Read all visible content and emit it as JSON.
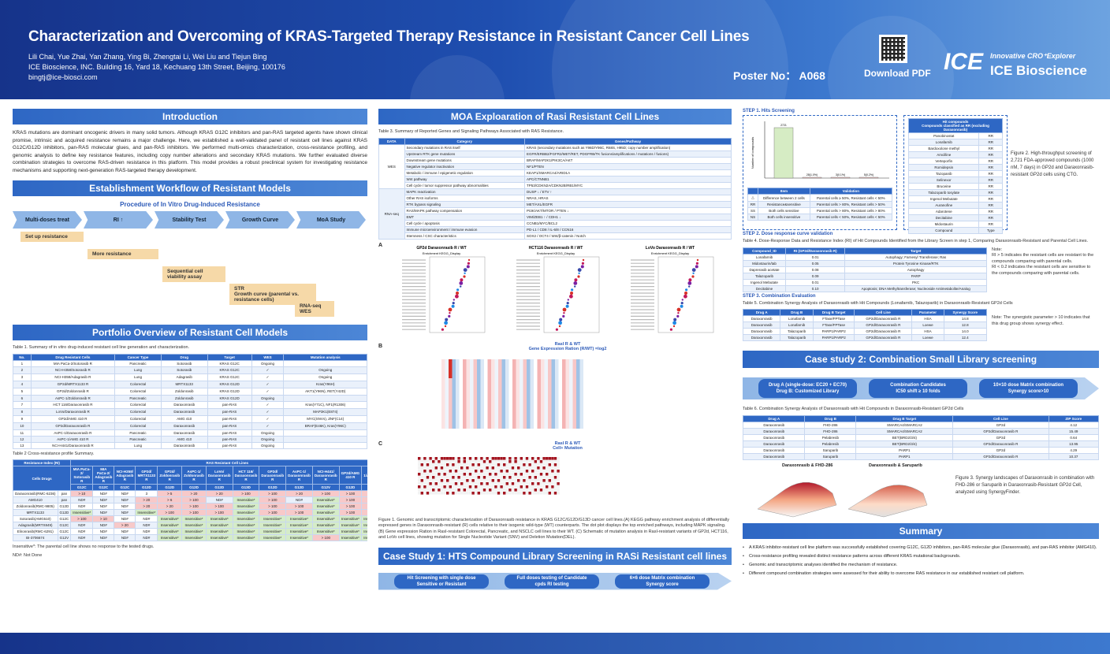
{
  "header": {
    "title": "Characterization and Overcoming of KRAS-Targeted Therapy Resistance in Resistant Cancer Cell Lines",
    "authors": "Lili Chai, Yue Zhai, Yan Zhang, Ying Bi, Zhengtai Li, Wei Liu and Tiejun Bing",
    "affiliation": "ICE Bioscience, INC. Building 16, Yard 18, Kechuang 13th Street, Beijing, 100176",
    "email": "bingtj@ice-biosci.com",
    "poster_no": "Poster No： A068",
    "download": "Download PDF",
    "logo_mark": "ICE",
    "logo_tag": "Innovative CRO⁺Explorer",
    "logo_name": "ICE Bioscience",
    "primary_color": "#1f4fb0"
  },
  "intro": {
    "title": "Introduction",
    "text": "KRAS mutations are dominant oncogenic drivers in many solid tumors. Although KRAS G12C inhibitors and pan-RAS targeted agents have shown clinical promise, intrinsic and acquired resistance remains a major challenge. Here, we established a well-validated panel of resistant cell lines against KRAS G12C/G12D inhibitors, pan-RAS molecular glues, and pan-RAS inhibitors. We performed multi-omics characterization, cross-resistance profiling, and genomic analysis to define key resistance features, including copy number alterations and secondary KRAS mutations. We further evaluated diverse combination strategies to overcome RAS-driven resistance in this platform. This model provides a robust preclinical system for investigating resistance mechanisms and supporting next-generation RAS-targeted therapy development."
  },
  "workflow": {
    "title": "Establishment Workflow of Resistant Models",
    "subtitle": "Procedure of In Vitro Drug-Induced Resistance",
    "arrows": [
      "Multi-doses treat",
      "RI ↑",
      "Stability Test",
      "Growth Curve",
      "MoA Study"
    ],
    "steps": [
      "Set up resistance",
      "More resistance",
      "Sequential cell viability assay",
      "STR\nGrowth curve (parental vs. resistance cells)",
      "RNA-seq\nWES"
    ]
  },
  "portfolio": {
    "title": "Portfolio Overview of Resistant Cell Models",
    "table1_caption": "Table 1. Summary of in vitro drug-induced resistant cell line generation and characterization.",
    "table1_headers": [
      "No.",
      "Drug Resistant Cells",
      "Cancer Type",
      "Drug",
      "Target",
      "WES",
      "Mutation analysis"
    ],
    "table1_rows": [
      [
        "1",
        "MIA PaCa-2/Sotorasib R",
        "Pancreatic",
        "Sotorasib",
        "KRAS G12C",
        "Ongoing",
        ""
      ],
      [
        "2",
        "NCI-H358/Sotorasib R",
        "Lung",
        "Sotorasib",
        "KRAS G12C",
        "✓",
        "Ongoing"
      ],
      [
        "3",
        "NCI-H358/Adagrasib R",
        "Lung",
        "Adagrasib",
        "KRAS G12C",
        "✓",
        "Ongoing"
      ],
      [
        "4",
        "GP2d/MRTX1133 R",
        "Colorectal",
        "MRTX1133",
        "KRAS G12D",
        "✓",
        "Kras(Y96H)"
      ],
      [
        "5",
        "GP2d/Zoldonrasib R",
        "Colorectal",
        "Zoldonrasib",
        "KRAS G12D",
        "✓",
        "AKT1(Y96N), RET(Y42D)"
      ],
      [
        "6",
        "AsPC-1/Zoldonrasib R",
        "Pancreatic",
        "Zoldonrasib",
        "KRAS G12D",
        "Ongoing",
        ""
      ],
      [
        "7",
        "HCT 116/Daraxonrasib R",
        "Colorectal",
        "Daraxonrasib",
        "pan-RAS",
        "✓",
        "Kras(Y71C), NF1(R1306)"
      ],
      [
        "8",
        "LoVo/Daraxonrasib R",
        "Colorectal",
        "Daraxonrasib",
        "pan-RAS",
        "✓",
        "MAP3K1(E874)"
      ],
      [
        "9",
        "GP2d/AMG 410 R",
        "Colorectal",
        "AMG 410",
        "pan-RAS",
        "✓",
        "MYC(SNVs), ZNF(C14)"
      ],
      [
        "10",
        "GP2d/Daraxonrasib R",
        "Colorectal",
        "Daraxonrasib",
        "pan-RAS",
        "✓",
        "BRAF(E46K), Kras(Y96C)"
      ],
      [
        "11",
        "AsPC-1/Daraxonrasib R",
        "Pancreatic",
        "Daraxonrasib",
        "pan-RAS",
        "Ongoing",
        ""
      ],
      [
        "12",
        "AsPC-1/AMG 410 R",
        "Pancreatic",
        "AMG 410",
        "pan-RAS",
        "Ongoing",
        ""
      ],
      [
        "13",
        "NCI-H441/Daraxonrasib R",
        "Lung",
        "Daraxonrasib",
        "pan-RAS",
        "Ongoing",
        ""
      ]
    ],
    "table2_caption": "Table 2 Cross-resistance profile Summary.",
    "table2_corner": "Resistance Index (RI)",
    "table2_group": "RAS Resistant Cell Lines",
    "table2_cells_drugs": "Cells Drugs",
    "table2_cols": [
      "MIA PaCa-2/ Sotorasib R",
      "MIA PaCa-2/ Adagrasib R",
      "NCI-H358/ Adagrasib R",
      "GP2d/ MRTX1133 R",
      "GP2d/ Zoldonrasib R",
      "AsPC-1/ Zoldonrasib R",
      "LoVo/ Daraxonrasib R",
      "HCT 116/ Daraxonrasib R",
      "GP2d/ Daraxonrasib R",
      "AsPC-1/ Daraxonrasib R",
      "NCI-H441/ Daraxonrasib R",
      "GP2d/AMG 410 R",
      "AsPC-1/AMG 410 R"
    ],
    "table2_mut": [
      "G12C",
      "G12C",
      "G12C",
      "G12D",
      "G12D",
      "G12D",
      "G12D",
      "G13D",
      "G12D",
      "G12D",
      "G12V",
      "G12D",
      "G12D"
    ],
    "table2_rows": [
      {
        "drug": "Daraxonrasib(RMC-6236)",
        "target": "pan",
        "vals": [
          "> 10",
          "ND#",
          "ND#",
          "3",
          "> 5",
          "> 20",
          "> 20",
          "> 100",
          "> 100",
          "> 20",
          "> 100",
          "> 100",
          "> 5"
        ]
      },
      {
        "drug": "AMG410",
        "target": "pan",
        "vals": [
          "ND#",
          "ND#",
          "ND#",
          "> 20",
          "> 6",
          "> 100",
          "ND#",
          "Insensitive*",
          "> 100",
          "ND#",
          "Insensitive*",
          "> 100",
          "> 100"
        ]
      },
      {
        "drug": "Zoldonrasib(RMC-9805)",
        "target": "G12D",
        "vals": [
          "ND#",
          "ND#",
          "ND#",
          "> 20",
          "> 20",
          "> 100",
          "> 100",
          "Insensitive*",
          "> 100",
          "> 100",
          "Insensitive*",
          "> 100",
          "> 100"
        ]
      },
      {
        "drug": "MRTX1133",
        "target": "G12D",
        "vals": [
          "Insensitive*",
          "ND#",
          "ND#",
          "Insensitive*",
          "> 100",
          "> 100",
          "> 100",
          "Insensitive*",
          "> 100",
          "> 100",
          "Insensitive*",
          "> 100",
          "> 100"
        ]
      },
      {
        "drug": "Sotorasib(AMG510)",
        "target": "G12C",
        "vals": [
          "> 100",
          "> 10",
          "ND#",
          "ND#",
          "Insensitive*",
          "Insensitive*",
          "Insensitive*",
          "Insensitive*",
          "Insensitive*",
          "Insensitive*",
          "Insensitive*",
          "Insensitive*",
          "Insensitive*"
        ]
      },
      {
        "drug": "Adagrasib(MRTX849)",
        "target": "G12C",
        "vals": [
          "ND#",
          "ND#",
          "> 20",
          "ND#",
          "Insensitive*",
          "Insensitive*",
          "Insensitive*",
          "Insensitive*",
          "Insensitive*",
          "Insensitive*",
          "Insensitive*",
          "Insensitive*",
          "Insensitive*"
        ]
      },
      {
        "drug": "Elironrasib(RMC-6291)",
        "target": "G12C",
        "vals": [
          "ND#",
          "ND#",
          "ND#",
          "ND#",
          "Insensitive*",
          "Insensitive*",
          "Insensitive*",
          "Insensitive*",
          "Insensitive*",
          "Insensitive*",
          "Insensitive*",
          "Insensitive*",
          "Insensitive*"
        ]
      },
      {
        "drug": "BI-3706674",
        "target": "G12V",
        "vals": [
          "ND#",
          "ND#",
          "ND#",
          "ND#",
          "Insensitive*",
          "Insensitive*",
          "Insensitive*",
          "Insensitive*",
          "Insensitive*",
          "Insensitive*",
          "> 100",
          "Insensitive*",
          "Insensitive*"
        ]
      }
    ],
    "note1": "Insensitive*: The parental cell line shows no response to the tested drugs.",
    "note2": "ND#: Not Done"
  },
  "moa": {
    "title": "MOA Exploaration of  Rasi Resistant Cell Lines",
    "table3_caption": "Table 3. Summary of Reported Genes and Signaling Pathways Associated with RAS Resistance.",
    "table3_headers": [
      "DATA",
      "Category",
      "Genes/Pathway"
    ],
    "wes_label": "WES",
    "rnaseq_label": "RNA-seq",
    "table3_wes": [
      [
        "Secondary mutations in RAS itself",
        "KRAS (secondary mutations such as Y96D/Y96C, R68S, H95D; copy number amplification)"
      ],
      [
        "Upstream RTK gene mutations",
        "EGFR/ERBB2/FGFR2/MET/RET, PDGFRB/TK fusions/amplifications / mutations / fusions)"
      ],
      [
        "Downstream gene mutations",
        "BRAF/MAP2K1/PIK3CA/AKT"
      ],
      [
        "Negative regulator inactivation",
        "NF1/PTEN"
      ],
      [
        "Metabolic / immune / epigenetic regulation",
        "KEAP1/SMARCA4/ARID1A"
      ],
      [
        "Wnt pathway",
        "APC/CTNNB1"
      ],
      [
        "Cell cycle / tumor suppressor pathway abnormalities",
        "TP53/CDKN2A/CDKN2B/RB1/MYC"
      ]
    ],
    "table3_rna": [
      [
        "MAPK reactivation",
        "DUSP ↓ / ETV ↑"
      ],
      [
        "Other RAS isoforms",
        "NRAS, HRAS"
      ],
      [
        "RTK bypass signaling",
        "MET/AXL/EGFR"
      ],
      [
        "RAS/MAPK pathway compensation",
        "PI3K/AKT/MTOR / PTEN ↓"
      ],
      [
        "EMT",
        "VIM/ZEB1 ↑ / CDH1 ↓"
      ],
      [
        "Cell cycle / apoptosis",
        "CCNB1/MYC/BCL2"
      ],
      [
        "Immune microenvironment / immune evasion",
        "PD-L1 / CD8 / IL-6/8 / CCN16"
      ],
      [
        "Stemness / CSC characteristics",
        "SOX2 / OCT4 / Wnt/β-catenin / Notch"
      ]
    ],
    "panel_a": "A",
    "panel_b": "B",
    "panel_c": "C",
    "dot_titles": [
      "GP2d Daraxonrasib R / WT",
      "HCT116 Daraxonrasib R / WT",
      "LoVo Daraxonrasib R / WT"
    ],
    "dot_subtitle": "Enrichment KEGG_Display",
    "heat_title": "RasI R & WT\nGene Expression Ration (R/WT) =log2",
    "mut_title": "RasI R & WT\nCell+ Mutation",
    "fig1_caption": "Figure 1. Genomic and transcriptomic characterization of Daraxonrasib resistance in KRAS G12C/G12D/G13D cancer cell lines.(A) KEGG pathway enrichment analysis of differentially expressed genes in Daraxonrasib-resistant (R) cells relative to their isogenic wild-type (WT) counterparts. The dot plot displays the top enriched pathways, including MAPK signaling. (B) Gene expression Ration in RasI-resistant Colorectal, Pancreatic, and NSCLC cell lines to their WT. (C) Schematic of mutation analysis in RasI-resistant variants of GP2d, HCT116, and LoVo cell lines, showing mutation for Single Nucleotide Variant (SNV) and Deletion Mutation(DEL)."
  },
  "case1": {
    "title": "Case Study 1: HTS Compound Library Screening in RASi Resistant cell lines",
    "pills": [
      "Hit Screening with single dose\nSensitive or Resistant",
      "Full doses testing of Candidate\ncpds RI testing",
      "6×6 dose Matrix combination\nSynergy score"
    ]
  },
  "step1": {
    "title": "STEP 1. Hits Screening",
    "bar_label": "Resistant: 2721",
    "bar_values": [
      "2721",
      "28(1.0%)",
      "3(0.1%)",
      "5(0.2%)"
    ],
    "ylabel": "Number of compounds",
    "legend_headers": [
      "Item",
      "Validation"
    ],
    "legend_rows": [
      [
        "△",
        "Difference between 2 cells",
        "Parental cells ≥ 50%, Resistant cells < 50%"
      ],
      [
        "RR",
        "Resistance&sensitive",
        "Parental cells > 80%, Resistant cells > 50%"
      ],
      [
        "SS",
        "Both cells sensitive",
        "Parental cells > 80%, Resistant cells > 80%"
      ],
      [
        "NS",
        "Both cells insensitive",
        "Parental cells < 50%, Resistant cells < 50%"
      ]
    ],
    "hit_header": "Hit compounds\nCompounds classified as RR (excluding Daraxonrasib)",
    "hit_rows": [
      [
        "Panobinostat",
        "RR"
      ],
      [
        "Lonafarnib",
        "RR"
      ],
      [
        "Bardoxolone methyl",
        "RR"
      ],
      [
        "Amcilline",
        "RR"
      ],
      [
        "Verteporfin",
        "RR"
      ],
      [
        "Romidepsin",
        "RR"
      ],
      [
        "Tazopanib",
        "RR"
      ],
      [
        "Selinexor",
        "RR"
      ],
      [
        "Bruceine",
        "RR"
      ],
      [
        "Talazoparib tosylate",
        "RR"
      ],
      [
        "Ingenol Mebutate",
        "RR"
      ],
      [
        "Auranofine",
        "RR"
      ],
      [
        "Adarotene",
        "RR"
      ],
      [
        "Decitabine",
        "RR"
      ],
      [
        "Midostaurin",
        "RR"
      ],
      [
        "Compound",
        "Type"
      ]
    ],
    "fig2_caption": "Figure 2. High-throughput screening of 2,721 FDA-approved compounds (1000 nM, 7 days) in GP2d and Daraxonrasib-resistant GP2d cells using CTG."
  },
  "step2": {
    "title": "STEP 2. Dose response curve validation",
    "table4_caption": "Table 4. Dose-Response Data and Resistance Index (RI) of Hit Compounds Identified from the Library Screen in step 1, Comparing Daraxonrasib-Resistant and Parental Cell Lines.",
    "table4_headers": [
      "Compound_ID",
      "RI (GP2d/Daraxonrasib R)",
      "Target"
    ],
    "table4_rows": [
      [
        "Lonafarnib",
        "0.01",
        "Autophagy; Farnesyl Transferase; Ras"
      ],
      [
        "Midostaurin/tab",
        "0.05",
        "Protein Tyrosine Kinase/RTK"
      ],
      [
        "Daprerasib acetate",
        "0.08",
        "Autophagy"
      ],
      [
        "Talazoparib",
        "0.09",
        "PARP"
      ],
      [
        "Ingenol Mebutate",
        "0.01",
        "PKC"
      ],
      [
        "Decitabine",
        "0.10",
        "Apoptosis; DNA Methyltransferase; Nucleoside Antimetabolite/Analog"
      ]
    ],
    "note": "Note:\nRI > 5 indicates the resistant cells are resistant to the compounds comparing with parental cells.\nRI < 0.2 indicates the resistant cells are sensitive to the compounds comparing with parental cells."
  },
  "step3": {
    "title": "STEP 3. Combination Evaluation",
    "table5_caption": "Table 5. Combination Synergy Analysis of Daraxonrasib with Hit Compounds (Lonafarnib, Talazoparib) in Daraxonrasib-Resistant GP2d Cells",
    "table5_headers": [
      "Drug A",
      "Drug B",
      "Drug B Target",
      "Cell Line",
      "Parameter",
      "Synergy Score"
    ],
    "table5_rows": [
      [
        "Daraxonrasib",
        "Lonafarnib",
        "FTase/FPTase",
        "GP2d/Daraxonrasib R",
        "HSA",
        "14.8"
      ],
      [
        "Daraxonrasib",
        "Lonafarnib",
        "FTase/FPTase",
        "GP2d/Daraxonrasib R",
        "Loewe",
        "12.8"
      ],
      [
        "Daraxonrasib",
        "Talazoparib",
        "PARP1/PARP2",
        "GP2d/Daraxonrasib R",
        "HSA",
        "14.0"
      ],
      [
        "Daraxonrasib",
        "Talazoparib",
        "PARP1/PARP2",
        "GP2d/Daraxonrasib R",
        "Loewe",
        "12.4"
      ]
    ],
    "note": "Note: The synergistic parameter > 10 indicates that this drug group shows synergy effect."
  },
  "case2": {
    "title": "Case study 2: Combination Small Library screening",
    "pills": [
      "Drug A (single-dose: EC20 + EC70)\nDrug B: Customized Library",
      "Combination Candidates\nIC50 shift ≥ 10 folds",
      "10×10 dose Matrix combination\nSynergy score>10"
    ],
    "table6_caption": "Table 6. Combination Synergy Analysis of Daraxonrasib with Hit Compounds in Daraxonrasib-Resistant GP2d Cells",
    "table6_headers": [
      "Drug A",
      "Drug B",
      "Drug B Target",
      "Cell Line",
      "ZIP Score"
    ],
    "table6_rows": [
      [
        "Daraxonrasib",
        "FHD-286",
        "SMARCA4/SMARCA2",
        "GP2d",
        "4.12"
      ],
      [
        "Daraxonrasib",
        "FHD-286",
        "SMARCA4/SMARCA2",
        "GP2d/Daraxonrasib R",
        "15.49"
      ],
      [
        "Daraxonrasib",
        "Pelabresib",
        "BET(BRD2/3/4)",
        "GP2d",
        "0.64"
      ],
      [
        "Daraxonrasib",
        "Pelabresib",
        "BET(BRD2/3/4)",
        "GP2d/Daraxonrasib R",
        "13.95"
      ],
      [
        "Daraxonrasib",
        "Saruparib",
        "PARP1",
        "GP2d",
        "4.29"
      ],
      [
        "Daraxonrasib",
        "Saruparib",
        "PARP1",
        "GP2d/Daraxonrasib R",
        "10.37"
      ]
    ],
    "surface_titles": [
      "Daraxonrasib & FHD-286",
      "Daraxonrasib & Saruparib"
    ],
    "fig3_caption": "Figure 3. Synergy landscapes of Daraxonrasib in combination with FHD-286 or Saruparib in Daraxonrasib-Resistant GP2d Cell, analyzed using SynergyFinder."
  },
  "summary": {
    "title": "Summary",
    "items": [
      "A KRAS inhibitor-resistant cell line platform was successfully established covering G12C, G12D inhibitors, pan-RAS molecular glue (Daraxonrasib), and pan-RAS inhibitor (AMG410).",
      "Cross-resistance profiling revealed distinct resistance patterns across different KRAS mutational backgrounds.",
      "Genomic and transcriptomic analyses identified the mechanism of resistance.",
      "Different compound combination strategies were assessed for their ability to overcome RAS resistance in our established resistant cell platform."
    ]
  }
}
